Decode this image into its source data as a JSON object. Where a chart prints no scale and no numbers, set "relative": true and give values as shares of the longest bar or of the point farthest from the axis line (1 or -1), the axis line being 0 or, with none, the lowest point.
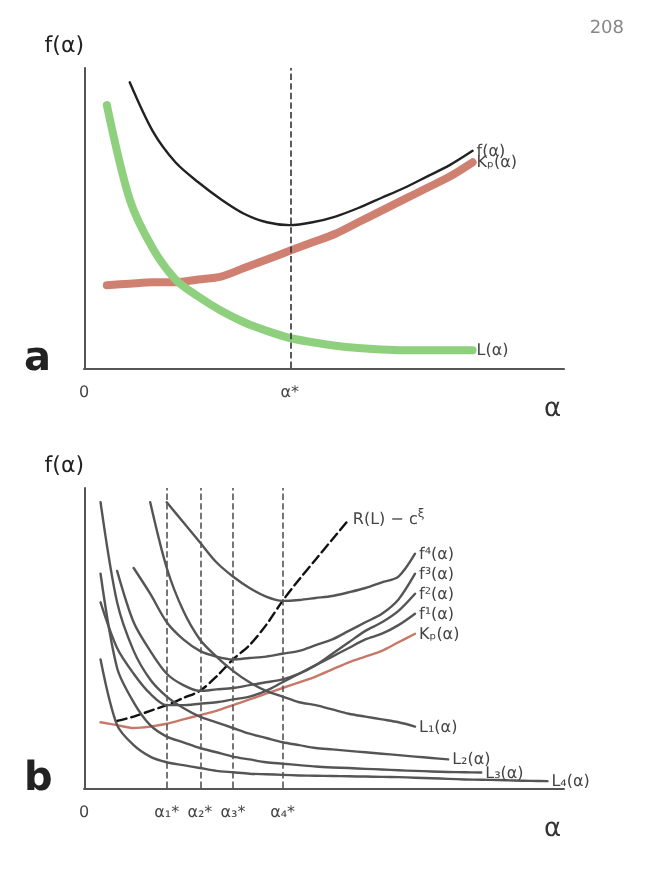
{
  "chart_data": [
    {
      "type": "line",
      "relative": true,
      "ylabel": "f(α)",
      "xlabel": "α",
      "grid": false,
      "legend": false,
      "marker": "none",
      "annotations": [
        "208",
        "a"
      ],
      "categories": [
        "0",
        null,
        null,
        null,
        null,
        null,
        null,
        null,
        null,
        "α*",
        null,
        null,
        null,
        null,
        null,
        null,
        null,
        null,
        null,
        null,
        null,
        null
      ],
      "ref_lines": [
        {
          "axis": "x",
          "value": "α*",
          "label": null,
          "line_style": "dashed",
          "color": "#333333"
        }
      ],
      "series": [
        {
          "name": "f(α)",
          "color": "#222222",
          "values": [
            null,
            null,
            1.0,
            0.83,
            0.72,
            0.65,
            0.59,
            0.54,
            0.51,
            0.5,
            0.51,
            0.53,
            0.56,
            0.595,
            0.63,
            0.67,
            0.71,
            0.76,
            null,
            null,
            null,
            null
          ]
        },
        {
          "name": "Kₚ(α)",
          "color": "#d08070",
          "values": [
            null,
            0.29,
            0.295,
            0.3,
            0.3,
            0.31,
            0.32,
            0.35,
            0.38,
            0.41,
            0.44,
            0.47,
            0.51,
            0.55,
            0.59,
            0.63,
            0.67,
            0.72,
            null,
            null,
            null,
            null
          ]
        },
        {
          "name": "L(α)",
          "color": "#8fd07f",
          "values": [
            null,
            0.92,
            0.59,
            0.42,
            0.31,
            0.25,
            0.2,
            0.16,
            0.13,
            0.105,
            0.09,
            0.078,
            0.07,
            0.065,
            0.0625,
            0.0625,
            0.0625,
            0.0625,
            null,
            null,
            null,
            null
          ]
        }
      ]
    },
    {
      "type": "line",
      "relative": true,
      "ylabel": "f(α)",
      "xlabel": "α",
      "grid": false,
      "legend": false,
      "marker": "none",
      "annotations": [
        "b"
      ],
      "categories": [
        "0",
        null,
        null,
        null,
        null,
        "α₁*",
        null,
        "α₂*",
        null,
        "α₃*",
        null,
        null,
        "α₄*",
        null,
        null,
        null,
        null,
        null,
        null,
        null,
        null,
        null,
        null,
        null,
        null,
        null,
        null,
        null,
        null,
        null
      ],
      "ref_lines": [
        {
          "axis": "x",
          "value": "α₁*",
          "label": null,
          "line_style": "dashed",
          "color": "#555555"
        },
        {
          "axis": "x",
          "value": "α₂*",
          "label": null,
          "line_style": "dashed",
          "color": "#555555"
        },
        {
          "axis": "x",
          "value": "α₃*",
          "label": null,
          "line_style": "dashed",
          "color": "#555555"
        },
        {
          "axis": "x",
          "value": "α₄*",
          "label": null,
          "line_style": "dashed",
          "color": "#555555"
        }
      ],
      "series": [
        {
          "name": "R(L) − c$^{ξ}$",
          "color": "#111111",
          "line_style": "dashed",
          "values": [
            null,
            null,
            0.235,
            0.25,
            0.27,
            0.29,
            0.315,
            0.34,
            0.39,
            0.45,
            0.5,
            0.57,
            0.655,
            0.73,
            0.8,
            0.87,
            0.94,
            null,
            null,
            null,
            null,
            null,
            null,
            null,
            null,
            null,
            null,
            null,
            null,
            null
          ]
        },
        {
          "name": "f⁴(α)",
          "color": "#555555",
          "values": [
            null,
            null,
            null,
            null,
            null,
            1.0,
            0.93,
            0.86,
            0.79,
            0.74,
            0.7,
            0.67,
            0.655,
            0.658,
            0.665,
            0.672,
            0.685,
            0.7,
            0.72,
            0.74,
            0.82,
            null,
            null,
            null,
            null,
            null,
            null,
            null,
            null,
            null
          ]
        },
        {
          "name": "f³(α)",
          "color": "#555555",
          "values": [
            null,
            null,
            null,
            0.77,
            0.68,
            0.58,
            0.52,
            0.48,
            0.46,
            0.45,
            0.455,
            0.46,
            0.47,
            0.48,
            0.5,
            0.52,
            0.55,
            0.58,
            0.61,
            0.66,
            0.75,
            null,
            null,
            null,
            null,
            null,
            null,
            null,
            null,
            null
          ]
        },
        {
          "name": "f²(α)",
          "color": "#555555",
          "values": [
            null,
            null,
            0.76,
            0.58,
            0.48,
            0.4,
            0.36,
            0.34,
            0.345,
            0.35,
            0.36,
            0.37,
            0.38,
            0.4,
            0.43,
            0.47,
            0.51,
            0.55,
            0.58,
            0.62,
            0.68,
            null,
            null,
            null,
            null,
            null,
            null,
            null,
            null,
            null
          ]
        },
        {
          "name": "f¹(α)",
          "color": "#555555",
          "values": [
            null,
            0.65,
            0.49,
            0.4,
            0.33,
            0.29,
            0.29,
            0.295,
            0.3,
            0.31,
            0.32,
            0.34,
            0.37,
            0.4,
            0.43,
            0.46,
            0.49,
            0.52,
            0.54,
            0.57,
            0.61,
            null,
            null,
            null,
            null,
            null,
            null,
            null,
            null,
            null
          ]
        },
        {
          "name": "Kₚ(α)",
          "color": "#c87868",
          "values": [
            null,
            0.23,
            0.22,
            0.21,
            0.215,
            0.225,
            0.24,
            0.255,
            0.27,
            0.29,
            0.31,
            0.33,
            0.35,
            0.37,
            0.39,
            0.415,
            0.44,
            0.46,
            0.48,
            0.51,
            0.54,
            null,
            null,
            null,
            null,
            null,
            null,
            null,
            null,
            null
          ]
        },
        {
          "name": "L₁(α)",
          "color": "#555555",
          "values": [
            null,
            null,
            null,
            null,
            1.0,
            0.77,
            0.62,
            0.52,
            0.46,
            0.41,
            0.37,
            0.34,
            0.32,
            0.3,
            0.29,
            0.275,
            0.26,
            0.25,
            0.24,
            0.23,
            0.215,
            null,
            null,
            null,
            null,
            null,
            null,
            null,
            null,
            null
          ]
        },
        {
          "name": "L₂(α)",
          "color": "#555555",
          "values": [
            null,
            1.0,
            0.65,
            0.48,
            0.38,
            0.32,
            0.28,
            0.25,
            0.23,
            0.21,
            0.19,
            0.175,
            0.16,
            0.15,
            0.14,
            0.135,
            0.13,
            0.125,
            0.12,
            0.115,
            0.11,
            0.105,
            0.1,
            null,
            null,
            null,
            null,
            null,
            null,
            null
          ]
        },
        {
          "name": "L₃(α)",
          "color": "#555555",
          "values": [
            null,
            0.75,
            0.42,
            0.3,
            0.22,
            0.18,
            0.16,
            0.14,
            0.125,
            0.11,
            0.1,
            0.09,
            0.085,
            0.08,
            0.075,
            0.072,
            0.07,
            0.067,
            0.065,
            0.062,
            0.06,
            0.058,
            0.056,
            0.055,
            0.054,
            null,
            null,
            null,
            null,
            null
          ]
        },
        {
          "name": "L₄(α)",
          "color": "#555555",
          "values": [
            null,
            0.45,
            0.22,
            0.15,
            0.11,
            0.09,
            0.08,
            0.07,
            0.06,
            0.055,
            0.05,
            0.048,
            0.046,
            0.044,
            0.043,
            0.042,
            0.041,
            0.04,
            0.039,
            0.038,
            0.036,
            0.034,
            0.032,
            0.03,
            0.029,
            0.028,
            0.026,
            0.025,
            0.024,
            null
          ]
        }
      ]
    }
  ]
}
